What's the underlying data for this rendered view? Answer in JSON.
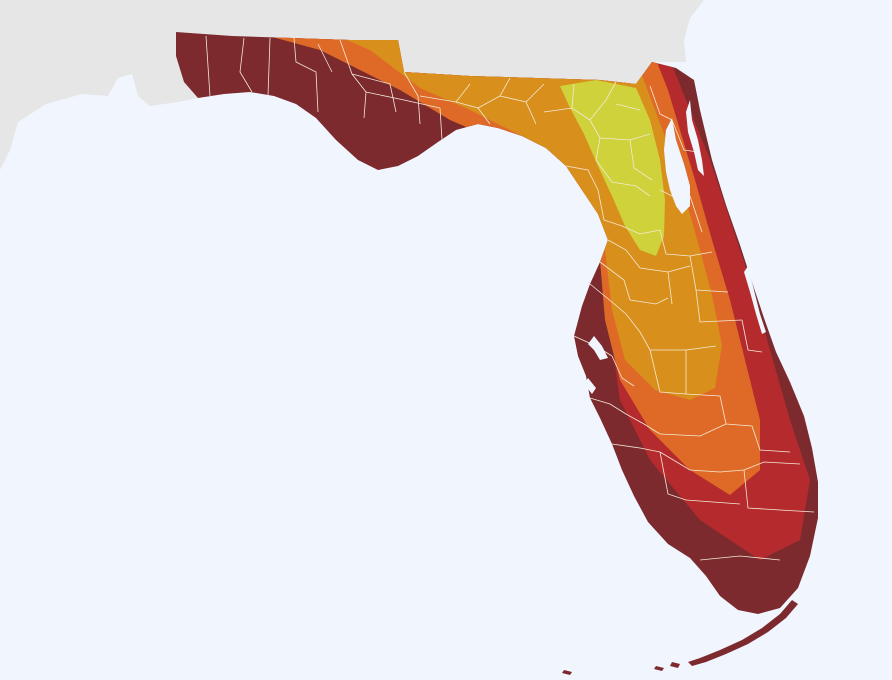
{
  "map": {
    "colors": {
      "water": "#f0f5fe",
      "land_outside": "#e6e6e6",
      "county_lines": "#f3ead8",
      "zone_1": "#7c2a2e",
      "zone_2": "#b52b2d",
      "zone_3": "#df6a27",
      "zone_4": "#d88f1b",
      "zone_5": "#cfd23a"
    },
    "zones": [
      {
        "id": "zone-1",
        "color_key": "zone_1"
      },
      {
        "id": "zone-2",
        "color_key": "zone_2"
      },
      {
        "id": "zone-3",
        "color_key": "zone_3"
      },
      {
        "id": "zone-4",
        "color_key": "zone_4"
      },
      {
        "id": "zone-5",
        "color_key": "zone_5"
      }
    ]
  }
}
